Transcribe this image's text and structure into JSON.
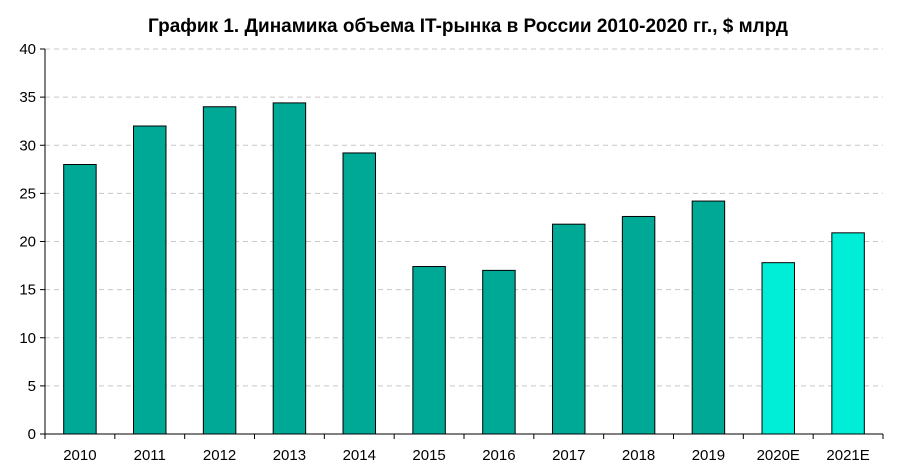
{
  "chart_data": {
    "type": "bar",
    "title": "График 1. Динамика объема IT-рынка в России 2010-2020 гг., $ млрд",
    "xlabel": "",
    "ylabel": "",
    "ylim": [
      0,
      40
    ],
    "yticks": [
      "0",
      "5",
      "10",
      "15",
      "20",
      "25",
      "30",
      "35",
      "40"
    ],
    "grid": true,
    "legend": "none",
    "categories": [
      "2010",
      "2011",
      "2012",
      "2013",
      "2014",
      "2015",
      "2016",
      "2017",
      "2018",
      "2019",
      "2020E",
      "2021E"
    ],
    "values": [
      28.0,
      32.0,
      34.0,
      34.4,
      29.2,
      17.4,
      17.0,
      21.8,
      22.6,
      24.2,
      17.8,
      20.9
    ],
    "bar_kind": [
      "actual",
      "actual",
      "actual",
      "actual",
      "actual",
      "actual",
      "actual",
      "actual",
      "actual",
      "actual",
      "forecast",
      "forecast"
    ],
    "colors": {
      "actual": "#00a896",
      "forecast": "#00eed8"
    }
  }
}
